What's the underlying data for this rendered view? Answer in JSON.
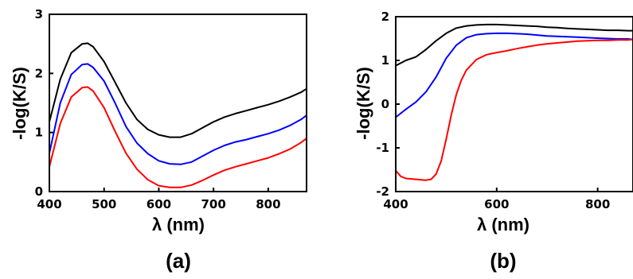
{
  "chart_data": [
    {
      "type": "line",
      "panel_label": "(a)",
      "xlabel": "λ (nm)",
      "ylabel": "-log(K/S)",
      "xlim": [
        400,
        870
      ],
      "ylim": [
        0,
        3
      ],
      "xticks": [
        "400",
        "500",
        "600",
        "700",
        "800"
      ],
      "yticks": [
        "0",
        "1",
        "2",
        "3"
      ],
      "grid": false,
      "series": [
        {
          "color": "#000000",
          "x": [
            400,
            420,
            440,
            460,
            470,
            480,
            500,
            520,
            540,
            560,
            580,
            600,
            620,
            640,
            660,
            680,
            700,
            720,
            740,
            760,
            780,
            800,
            820,
            840,
            860,
            870
          ],
          "y": [
            1.18,
            1.9,
            2.35,
            2.5,
            2.51,
            2.45,
            2.2,
            1.85,
            1.5,
            1.22,
            1.05,
            0.96,
            0.92,
            0.92,
            0.98,
            1.08,
            1.18,
            1.26,
            1.32,
            1.37,
            1.42,
            1.47,
            1.53,
            1.6,
            1.68,
            1.74
          ]
        },
        {
          "color": "#0000ff",
          "x": [
            400,
            420,
            440,
            460,
            470,
            480,
            500,
            520,
            540,
            560,
            580,
            600,
            620,
            640,
            660,
            680,
            700,
            720,
            740,
            760,
            780,
            800,
            820,
            840,
            860,
            870
          ],
          "y": [
            0.65,
            1.5,
            1.98,
            2.15,
            2.16,
            2.1,
            1.87,
            1.5,
            1.1,
            0.82,
            0.64,
            0.52,
            0.47,
            0.46,
            0.5,
            0.6,
            0.7,
            0.78,
            0.84,
            0.88,
            0.93,
            0.98,
            1.04,
            1.12,
            1.22,
            1.29
          ]
        },
        {
          "color": "#ff0000",
          "x": [
            400,
            420,
            440,
            460,
            470,
            480,
            500,
            520,
            540,
            560,
            580,
            600,
            620,
            640,
            660,
            680,
            700,
            720,
            740,
            760,
            780,
            800,
            820,
            840,
            860,
            870
          ],
          "y": [
            0.42,
            1.15,
            1.6,
            1.76,
            1.77,
            1.7,
            1.42,
            1.02,
            0.65,
            0.38,
            0.2,
            0.1,
            0.07,
            0.07,
            0.11,
            0.19,
            0.28,
            0.36,
            0.42,
            0.47,
            0.52,
            0.57,
            0.64,
            0.72,
            0.83,
            0.9
          ]
        }
      ]
    },
    {
      "type": "line",
      "panel_label": "(b)",
      "xlabel": "λ (nm)",
      "ylabel": "-log(K/S)",
      "xlim": [
        400,
        870
      ],
      "ylim": [
        -2,
        2
      ],
      "xticks": [
        "400",
        "600",
        "800"
      ],
      "yticks": [
        "-2",
        "-1",
        "0",
        "1",
        "2"
      ],
      "grid": false,
      "series": [
        {
          "color": "#000000",
          "x": [
            400,
            420,
            440,
            460,
            480,
            500,
            520,
            540,
            560,
            580,
            600,
            620,
            640,
            660,
            680,
            700,
            720,
            740,
            760,
            780,
            800,
            820,
            840,
            860,
            870
          ],
          "y": [
            0.88,
            1.0,
            1.08,
            1.25,
            1.45,
            1.62,
            1.74,
            1.79,
            1.81,
            1.82,
            1.82,
            1.81,
            1.8,
            1.79,
            1.78,
            1.76,
            1.75,
            1.73,
            1.72,
            1.71,
            1.7,
            1.69,
            1.69,
            1.68,
            1.68
          ]
        },
        {
          "color": "#0000ff",
          "x": [
            400,
            420,
            440,
            460,
            480,
            500,
            520,
            540,
            560,
            580,
            600,
            620,
            640,
            660,
            680,
            700,
            720,
            740,
            760,
            780,
            800,
            820,
            840,
            860,
            870
          ],
          "y": [
            -0.3,
            -0.12,
            0.05,
            0.28,
            0.62,
            1.05,
            1.35,
            1.52,
            1.59,
            1.61,
            1.62,
            1.62,
            1.61,
            1.6,
            1.58,
            1.56,
            1.55,
            1.54,
            1.53,
            1.52,
            1.51,
            1.5,
            1.49,
            1.49,
            1.48
          ]
        },
        {
          "color": "#ff0000",
          "x": [
            400,
            410,
            420,
            440,
            460,
            470,
            480,
            490,
            500,
            510,
            520,
            530,
            540,
            560,
            580,
            600,
            620,
            640,
            660,
            680,
            700,
            720,
            740,
            760,
            780,
            800,
            820,
            840,
            860,
            870
          ],
          "y": [
            -1.52,
            -1.65,
            -1.7,
            -1.72,
            -1.74,
            -1.72,
            -1.6,
            -1.3,
            -0.8,
            -0.25,
            0.22,
            0.55,
            0.78,
            1.02,
            1.13,
            1.18,
            1.22,
            1.27,
            1.31,
            1.35,
            1.38,
            1.4,
            1.42,
            1.44,
            1.45,
            1.46,
            1.46,
            1.47,
            1.47,
            1.48
          ]
        }
      ]
    }
  ]
}
